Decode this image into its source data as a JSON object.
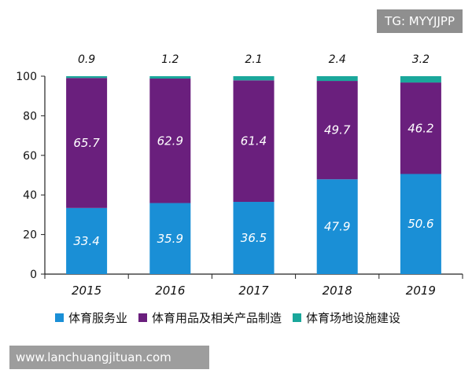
{
  "tag": "TG: MYYJJPP",
  "watermark": "www.lanchuangjituan.com",
  "chart_data": {
    "type": "bar",
    "stacked": true,
    "categories": [
      "2015",
      "2016",
      "2017",
      "2018",
      "2019"
    ],
    "ylim": [
      0,
      100
    ],
    "yticks": [
      "0",
      "20",
      "40",
      "60",
      "80",
      "100"
    ],
    "series": [
      {
        "name": "体育服务业",
        "color": "#1a8fd6",
        "values": [
          33.4,
          35.9,
          36.5,
          47.9,
          50.6
        ],
        "labels": [
          "33.4",
          "35.9",
          "36.5",
          "47.9",
          "50.6"
        ]
      },
      {
        "name": "体育用品及相关产品制造",
        "color": "#6a1f7d",
        "values": [
          65.7,
          62.9,
          61.4,
          49.7,
          46.2
        ],
        "labels": [
          "65.7",
          "62.9",
          "61.4",
          "49.7",
          "46.2"
        ]
      },
      {
        "name": "体育场地设施建设",
        "color": "#1aa79b",
        "values": [
          0.9,
          1.2,
          2.1,
          2.4,
          3.2
        ],
        "labels": [
          "0.9",
          "1.2",
          "2.1",
          "2.4",
          "3.2"
        ]
      }
    ]
  }
}
